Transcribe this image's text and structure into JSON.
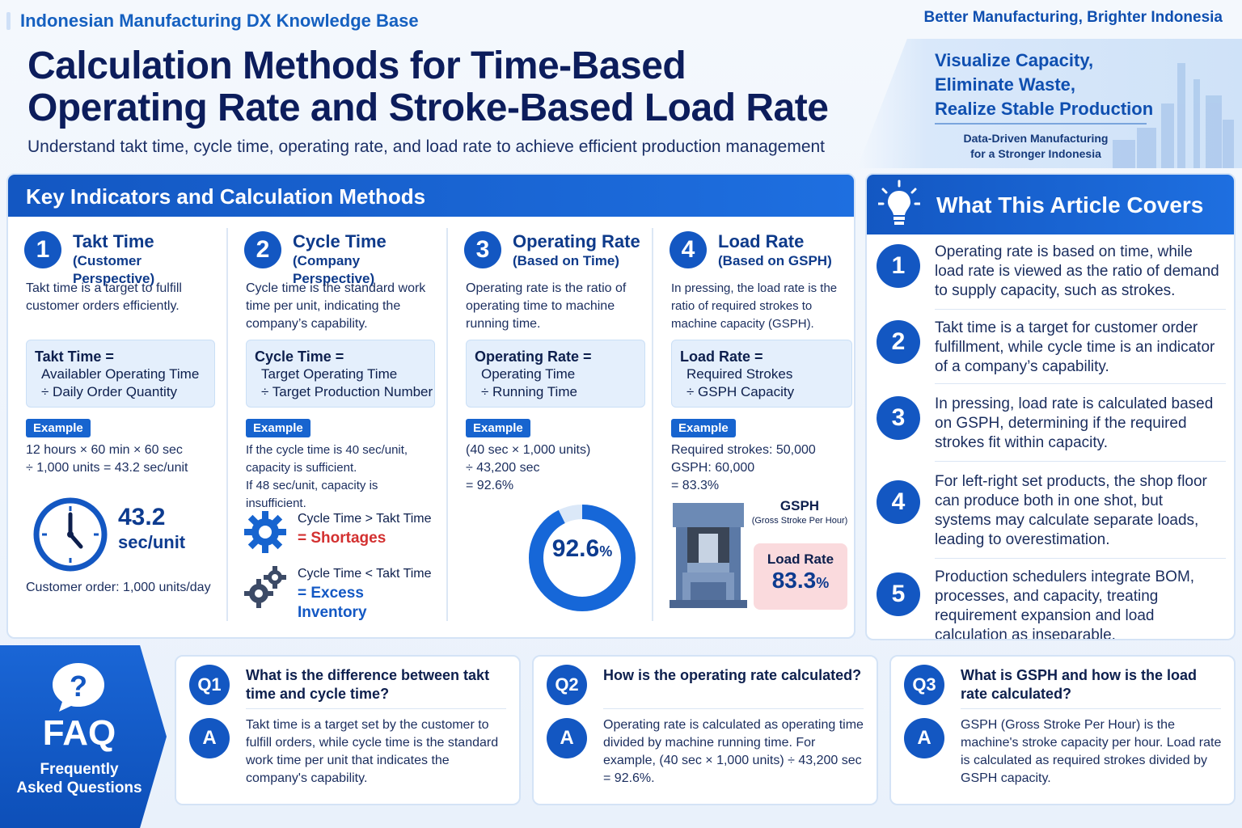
{
  "header": {
    "brand": "Indonesian Manufacturing DX Knowledge Base",
    "tagline": "Better Manufacturing, Brighter Indonesia",
    "title_line1": "Calculation Methods for Time-Based",
    "title_line2": "Operating Rate and Stroke-Based Load Rate",
    "subtitle": "Understand takt time, cycle time, operating rate, and load rate to achieve efficient production management"
  },
  "promo": {
    "line1": "Visualize Capacity,",
    "line2": "Eliminate Waste,",
    "line3": "Realize Stable Production",
    "foot1": "Data-Driven Manufacturing",
    "foot2": "for a Stronger Indonesia"
  },
  "key_indicators": {
    "heading": "Key Indicators and Calculation Methods",
    "example_label": "Example",
    "columns": [
      {
        "num": "1",
        "title": "Takt Time",
        "subtitle": "(Customer Perspective)",
        "desc": "Takt time is a target to fulfill customer orders efficiently.",
        "formula_title": "Takt Time =",
        "formula_l1": "Availabler Operating Time",
        "formula_l2": "÷ Daily Order Quantity",
        "ex_l1": "12 hours × 60 min × 60 sec",
        "ex_l2": "÷ 1,000 units = 43.2 sec/unit",
        "big_value": "43.2",
        "big_unit": "sec/unit",
        "note": "Customer order: 1,000 units/day"
      },
      {
        "num": "2",
        "title": "Cycle Time",
        "subtitle": "(Company Perspective)",
        "desc": "Cycle time is the standard work time per unit, indicating the company’s capability.",
        "formula_title": "Cycle Time =",
        "formula_l1": "Target Operating Time",
        "formula_l2": "÷ Target Production Number",
        "ex_l1": "If the cycle time is 40 sec/unit,",
        "ex_l2": "capacity is sufficient.",
        "ex_l3": "If 48 sec/unit, capacity is insufficient.",
        "cmp1_text": "Cycle Time > Takt Time",
        "cmp1_result": "= Shortages",
        "cmp2_text": "Cycle Time < Takt Time",
        "cmp2_result": "= Excess Inventory"
      },
      {
        "num": "3",
        "title": "Operating Rate",
        "subtitle": "(Based on Time)",
        "desc": "Operating rate is the ratio of operating time to machine running time.",
        "formula_title": "Operating Rate =",
        "formula_l1": "Operating Time",
        "formula_l2": "÷ Running Time",
        "ex_l1": "(40 sec × 1,000 units)",
        "ex_l2": "÷ 43,200 sec",
        "ex_l3": "= 92.6%",
        "donut_value": "92.6",
        "donut_unit": "%",
        "donut_fraction": 0.926
      },
      {
        "num": "4",
        "title": "Load Rate",
        "subtitle": "(Based on GSPH)",
        "desc": "In pressing, the load rate is the ratio of required strokes to machine capacity (GSPH).",
        "formula_title": "Load Rate =",
        "formula_l1": "Required Strokes",
        "formula_l2": "÷ GSPH Capacity",
        "ex_l1": "Required strokes: 50,000",
        "ex_l2": "GSPH: 60,000",
        "ex_l3": "= 83.3%",
        "gsph_title": "GSPH",
        "gsph_sub": "(Gross Stroke Per Hour)",
        "load_label": "Load Rate",
        "load_value": "83.3",
        "load_unit": "%"
      }
    ]
  },
  "article_covers": {
    "heading": "What This Article Covers",
    "items": [
      {
        "num": "1",
        "text": "Operating rate is based on time, while load rate is viewed as the ratio of demand to supply capacity, such as strokes."
      },
      {
        "num": "2",
        "text": "Takt time is a target for customer order fulfillment, while cycle time is an indicator of a company’s capability."
      },
      {
        "num": "3",
        "text": "In pressing, load rate is calculated based on GSPH, determining if the required strokes fit within capacity."
      },
      {
        "num": "4",
        "text": "For left-right set products, the shop floor can produce both in one shot, but systems may calculate separate loads, leading to overestimation."
      },
      {
        "num": "5",
        "text": "Production schedulers integrate BOM, processes, and capacity, treating requirement expansion and load calculation as inseparable."
      }
    ]
  },
  "faq": {
    "title": "FAQ",
    "sub1": "Frequently",
    "sub2": "Asked Questions",
    "answer_label": "A",
    "items": [
      {
        "q_label": "Q1",
        "question": "What is the difference between takt time and cycle time?",
        "answer": "Takt time is a target set by the customer to fulfill orders, while cycle time is the standard work time per unit that indicates the company's capability."
      },
      {
        "q_label": "Q2",
        "question": "How is the operating rate calculated?",
        "answer": "Operating rate is calculated as operating time divided by machine running time. For example, (40 sec × 1,000 units) ÷ 43,200 sec = 92.6%."
      },
      {
        "q_label": "Q3",
        "question": "What is GSPH and how is the load rate calculated?",
        "answer": "GSPH (Gross Stroke Per Hour) is the machine's stroke capacity per hour. Load rate is calculated as required strokes divided by GSPH capacity."
      }
    ]
  },
  "colors": {
    "primary": "#1357c2",
    "title": "#0c1d5c",
    "alert": "#d33030",
    "load_box": "#fadadd"
  },
  "icons": [
    "lightbulb-icon",
    "clock-icon",
    "gear-icon",
    "press-machine-icon",
    "question-bubble-icon"
  ]
}
